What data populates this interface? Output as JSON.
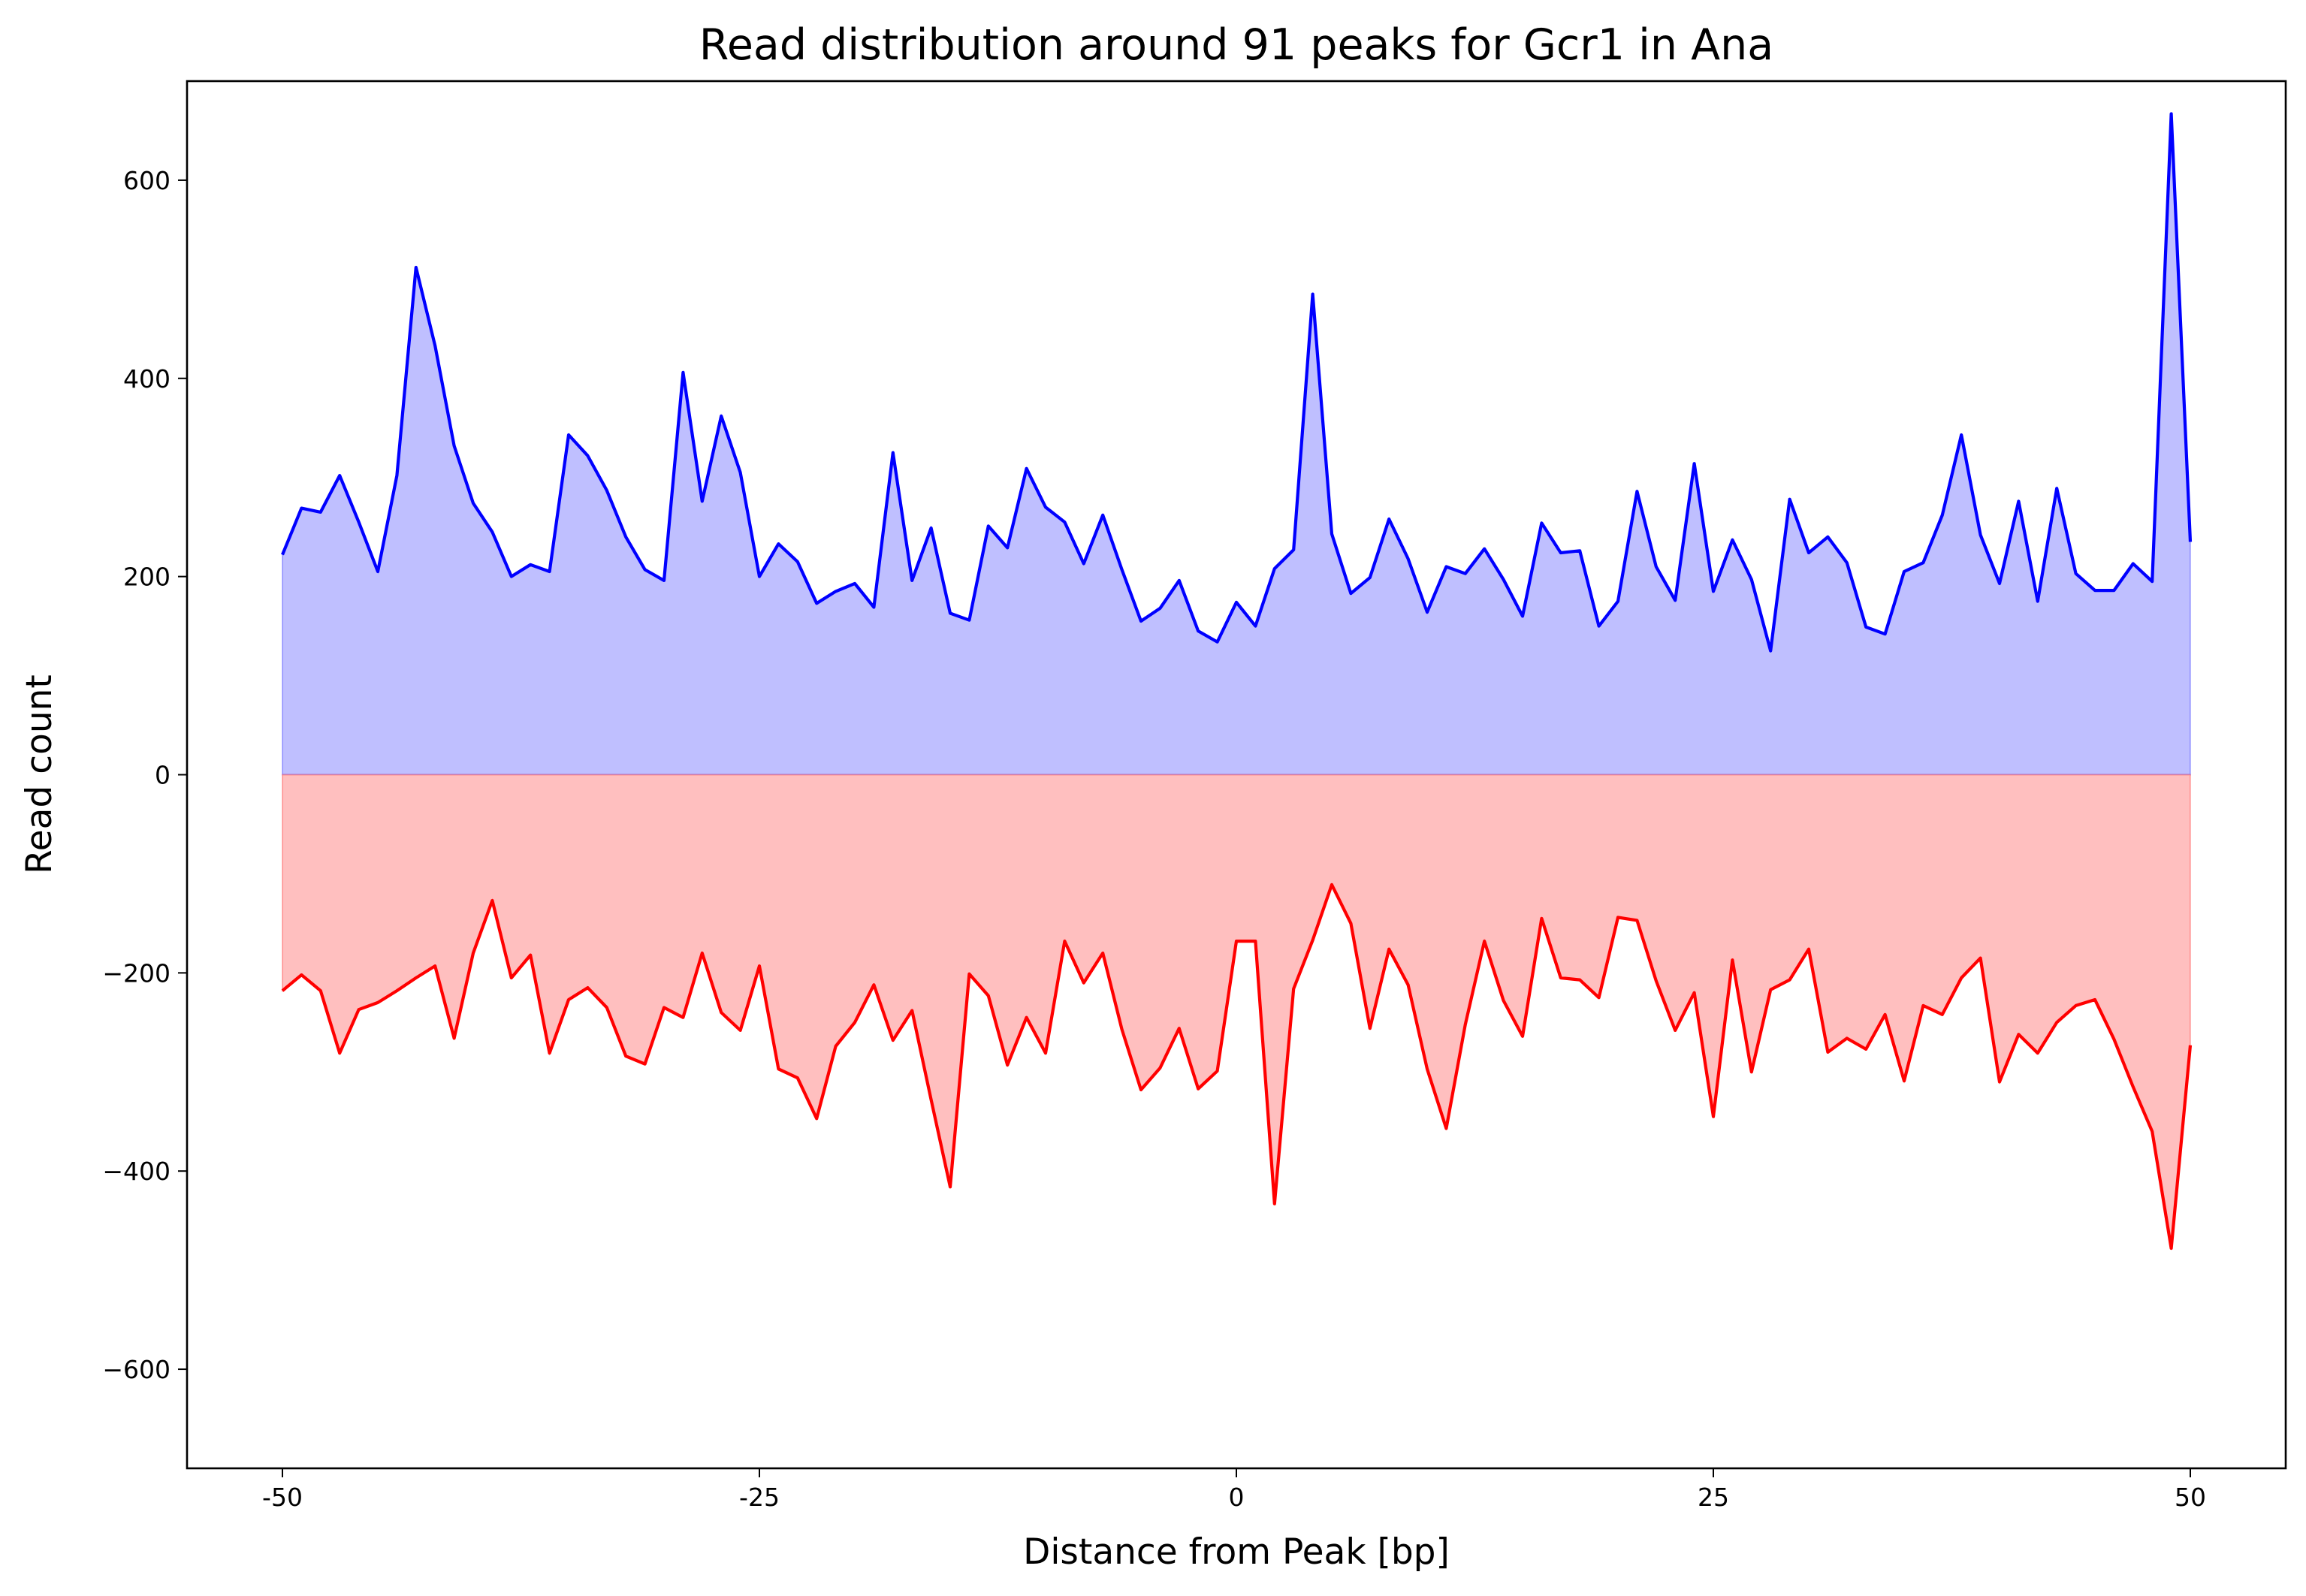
{
  "chart_data": {
    "type": "area",
    "title": "Read distribution around 91 peaks for Gcr1 in Ana",
    "xlabel": "Distance from Peak [bp]",
    "ylabel": "Read count",
    "xlim": [
      -55,
      55
    ],
    "ylim": [
      -700,
      700
    ],
    "xticks": [
      -50,
      -25,
      0,
      25,
      50
    ],
    "xtick_labels": [
      "-50",
      "-25",
      "0",
      "25",
      "50"
    ],
    "yticks": [
      -600,
      -400,
      -200,
      0,
      200,
      400,
      600
    ],
    "ytick_labels": [
      "−600",
      "−400",
      "−200",
      "0",
      "200",
      "400",
      "600"
    ],
    "grid": false,
    "x": [
      -50,
      -49,
      -48,
      -47,
      -46,
      -45,
      -44,
      -43,
      -42,
      -41,
      -40,
      -39,
      -38,
      -37,
      -36,
      -35,
      -34,
      -33,
      -32,
      -31,
      -30,
      -29,
      -28,
      -27,
      -26,
      -25,
      -24,
      -23,
      -22,
      -21,
      -20,
      -19,
      -18,
      -17,
      -16,
      -15,
      -14,
      -13,
      -12,
      -11,
      -10,
      -9,
      -8,
      -7,
      -6,
      -5,
      -4,
      -3,
      -2,
      -1,
      0,
      1,
      2,
      3,
      4,
      5,
      6,
      7,
      8,
      9,
      10,
      11,
      12,
      13,
      14,
      15,
      16,
      17,
      18,
      19,
      20,
      21,
      22,
      23,
      24,
      25,
      26,
      27,
      28,
      29,
      30,
      31,
      32,
      33,
      34,
      35,
      36,
      37,
      38,
      39,
      40,
      41,
      42,
      43,
      44,
      45,
      46,
      47,
      48,
      49,
      50
    ],
    "series": [
      {
        "color": "#0000ff",
        "fill": "#bfbfff",
        "values": [
          222,
          269,
          265,
          302,
          255,
          205,
          302,
          512,
          433,
          332,
          274,
          245,
          200,
          212,
          205,
          343,
          322,
          287,
          240,
          207,
          196,
          406,
          276,
          362,
          305,
          200,
          233,
          215,
          173,
          185,
          193,
          169,
          325,
          196,
          249,
          163,
          156,
          251,
          229,
          309,
          270,
          255,
          213,
          262,
          207,
          155,
          168,
          196,
          145,
          134,
          174,
          150,
          208,
          227,
          485,
          243,
          183,
          199,
          258,
          218,
          164,
          210,
          203,
          228,
          197,
          160,
          254,
          224,
          226,
          150,
          175,
          286,
          210,
          176,
          314,
          185,
          237,
          197,
          125,
          278,
          224,
          240,
          214,
          149,
          142,
          205,
          214,
          262,
          343,
          242,
          193,
          276,
          175,
          289,
          203,
          186,
          186,
          213,
          195,
          667,
          235
        ]
      },
      {
        "color": "#ff0000",
        "fill": "#ffbfbf",
        "values": [
          -218,
          -202,
          -218,
          -281,
          -237,
          -230,
          -218,
          -205,
          -193,
          -266,
          -180,
          -127,
          -205,
          -182,
          -281,
          -227,
          -215,
          -235,
          -284,
          -292,
          -235,
          -245,
          -180,
          -240,
          -258,
          -193,
          -297,
          -306,
          -347,
          -274,
          -250,
          -212,
          -268,
          -238,
          -328,
          -416,
          -201,
          -223,
          -293,
          -245,
          -281,
          -168,
          -210,
          -180,
          -257,
          -318,
          -296,
          -256,
          -317,
          -299,
          -168,
          -168,
          -433,
          -216,
          -167,
          -111,
          -150,
          -256,
          -176,
          -212,
          -297,
          -357,
          -252,
          -168,
          -228,
          -264,
          -145,
          -205,
          -207,
          -225,
          -144,
          -147,
          -208,
          -258,
          -220,
          -345,
          -187,
          -300,
          -217,
          -207,
          -176,
          -280,
          -266,
          -277,
          -242,
          -309,
          -233,
          -242,
          -205,
          -185,
          -310,
          -262,
          -281,
          -250,
          -233,
          -227,
          -267,
          -315,
          -360,
          -478,
          -273
        ]
      }
    ]
  }
}
